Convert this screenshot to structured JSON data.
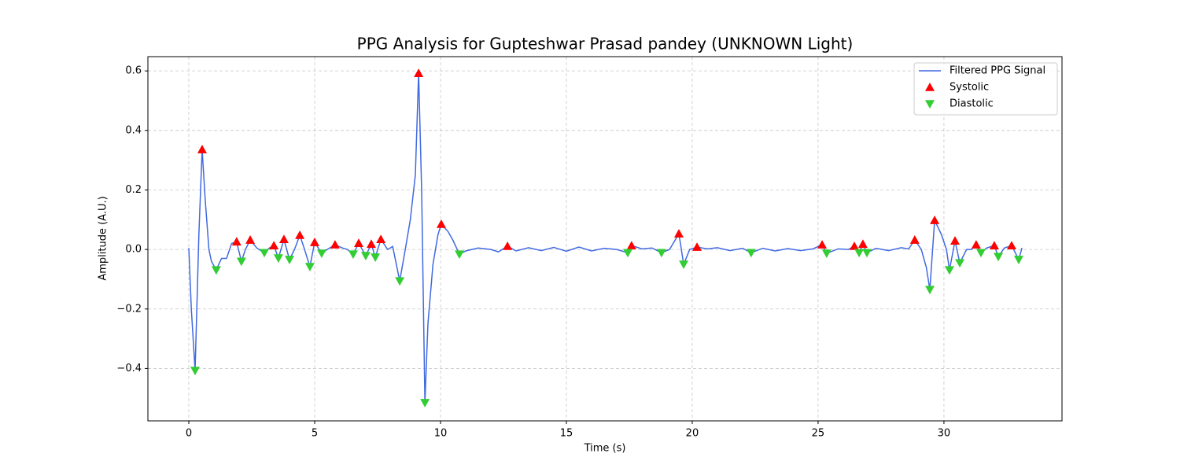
{
  "chart_data": {
    "type": "line",
    "title": "PPG Analysis for Gupteshwar Prasad pandey (UNKNOWN Light)",
    "x_label": "Time (s)",
    "y_label": "Amplitude (A.U.)",
    "xlim": [
      -1.625,
      34.69
    ],
    "ylim": [
      -0.576,
      0.648
    ],
    "xticks": [
      0,
      5,
      10,
      15,
      20,
      25,
      30
    ],
    "yticks": [
      {
        "value": -0.4,
        "label": "−0.4"
      },
      {
        "value": -0.2,
        "label": "−0.2"
      },
      {
        "value": 0,
        "label": "0.0"
      },
      0.2,
      0.4,
      0.6
    ],
    "grid": true,
    "legend": "upper right",
    "series": [
      {
        "name": "Filtered PPG Signal",
        "type": "line",
        "color": "#4169e1",
        "x": [
          0,
          0.1,
          0.25,
          0.4,
          0.53,
          0.65,
          0.8,
          0.9,
          1.09,
          1.3,
          1.5,
          1.7,
          1.9,
          2.09,
          2.25,
          2.44,
          2.7,
          3.0,
          3.2,
          3.38,
          3.56,
          3.78,
          4.0,
          4.2,
          4.41,
          4.6,
          4.81,
          5.0,
          5.28,
          5.5,
          5.81,
          6.1,
          6.3,
          6.53,
          6.75,
          7.03,
          7.25,
          7.41,
          7.63,
          7.9,
          8.1,
          8.38,
          8.6,
          8.8,
          9.0,
          9.13,
          9.25,
          9.38,
          9.5,
          9.7,
          9.9,
          10.03,
          10.3,
          10.5,
          10.75,
          11.0,
          11.5,
          12.0,
          12.3,
          12.66,
          13.0,
          13.5,
          14.0,
          14.5,
          15.0,
          15.5,
          16.0,
          16.5,
          17.0,
          17.44,
          17.59,
          18.0,
          18.4,
          18.78,
          19.1,
          19.47,
          19.66,
          19.9,
          20.19,
          20.6,
          21.0,
          21.5,
          22.0,
          22.34,
          22.8,
          23.3,
          23.8,
          24.3,
          24.8,
          25.16,
          25.34,
          25.8,
          26.2,
          26.44,
          26.63,
          26.78,
          26.94,
          27.3,
          27.8,
          28.3,
          28.6,
          28.84,
          29.1,
          29.3,
          29.44,
          29.63,
          29.9,
          30.1,
          30.22,
          30.44,
          30.63,
          30.9,
          31.1,
          31.28,
          31.47,
          31.7,
          32.0,
          32.16,
          32.4,
          32.69,
          32.97,
          33.1
        ],
        "values": [
          0.005,
          -0.2,
          -0.407,
          0.05,
          0.336,
          0.17,
          0.0,
          -0.04,
          -0.069,
          -0.03,
          -0.03,
          0.02,
          0.026,
          -0.04,
          0.0,
          0.032,
          0.005,
          -0.011,
          0.005,
          0.013,
          -0.029,
          0.034,
          -0.034,
          0.0,
          0.048,
          0.0,
          -0.058,
          0.024,
          -0.013,
          0.0,
          0.016,
          0.005,
          0.0,
          -0.016,
          0.021,
          -0.021,
          0.018,
          -0.026,
          0.034,
          0.0,
          0.01,
          -0.106,
          0.0,
          0.1,
          0.25,
          0.592,
          0.2,
          -0.515,
          -0.25,
          -0.05,
          0.05,
          0.085,
          0.06,
          0.03,
          -0.016,
          -0.005,
          0.005,
          0.0,
          -0.008,
          0.011,
          -0.005,
          0.006,
          -0.004,
          0.007,
          -0.006,
          0.008,
          -0.005,
          0.004,
          0.0,
          -0.011,
          0.013,
          0.002,
          0.005,
          -0.011,
          0.0,
          0.053,
          -0.05,
          0.0,
          0.008,
          0.002,
          0.006,
          -0.004,
          0.004,
          -0.011,
          0.004,
          -0.005,
          0.003,
          -0.004,
          0.002,
          0.016,
          -0.013,
          0.002,
          0.0,
          0.011,
          -0.011,
          0.018,
          -0.011,
          0.004,
          -0.004,
          0.006,
          0.002,
          0.032,
          0.0,
          -0.06,
          -0.135,
          0.098,
          0.05,
          0.0,
          -0.069,
          0.029,
          -0.045,
          0.0,
          0.0,
          0.016,
          -0.011,
          0.005,
          0.013,
          -0.024,
          0.005,
          0.013,
          -0.034,
          0.005
        ]
      },
      {
        "name": "Systolic",
        "type": "scatter",
        "marker": "triangle-up",
        "color": "#ff0000",
        "x": [
          0.53,
          1.9,
          2.44,
          3.38,
          3.78,
          4.41,
          5.0,
          5.81,
          6.75,
          7.25,
          7.63,
          9.13,
          10.03,
          12.66,
          17.59,
          19.47,
          20.19,
          25.16,
          26.44,
          26.78,
          28.84,
          29.63,
          30.44,
          31.28,
          32.0,
          32.69
        ],
        "values": [
          0.336,
          0.026,
          0.032,
          0.013,
          0.034,
          0.048,
          0.024,
          0.016,
          0.021,
          0.018,
          0.034,
          0.592,
          0.085,
          0.011,
          0.013,
          0.053,
          0.008,
          0.016,
          0.011,
          0.018,
          0.032,
          0.098,
          0.029,
          0.016,
          0.013,
          0.013
        ]
      },
      {
        "name": "Diastolic",
        "type": "scatter",
        "marker": "triangle-down",
        "color": "#32cd32",
        "x": [
          0.25,
          1.09,
          2.09,
          3.0,
          3.56,
          4.0,
          4.81,
          5.28,
          6.53,
          7.03,
          7.41,
          8.38,
          9.38,
          10.75,
          17.44,
          18.78,
          19.66,
          22.34,
          25.34,
          26.63,
          26.94,
          29.44,
          30.22,
          30.63,
          31.47,
          32.16,
          32.97
        ],
        "values": [
          -0.407,
          -0.069,
          -0.04,
          -0.011,
          -0.029,
          -0.034,
          -0.058,
          -0.013,
          -0.016,
          -0.021,
          -0.026,
          -0.106,
          -0.515,
          -0.016,
          -0.011,
          -0.011,
          -0.05,
          -0.011,
          -0.013,
          -0.011,
          -0.011,
          -0.135,
          -0.069,
          -0.045,
          -0.011,
          -0.024,
          -0.034
        ]
      }
    ]
  }
}
